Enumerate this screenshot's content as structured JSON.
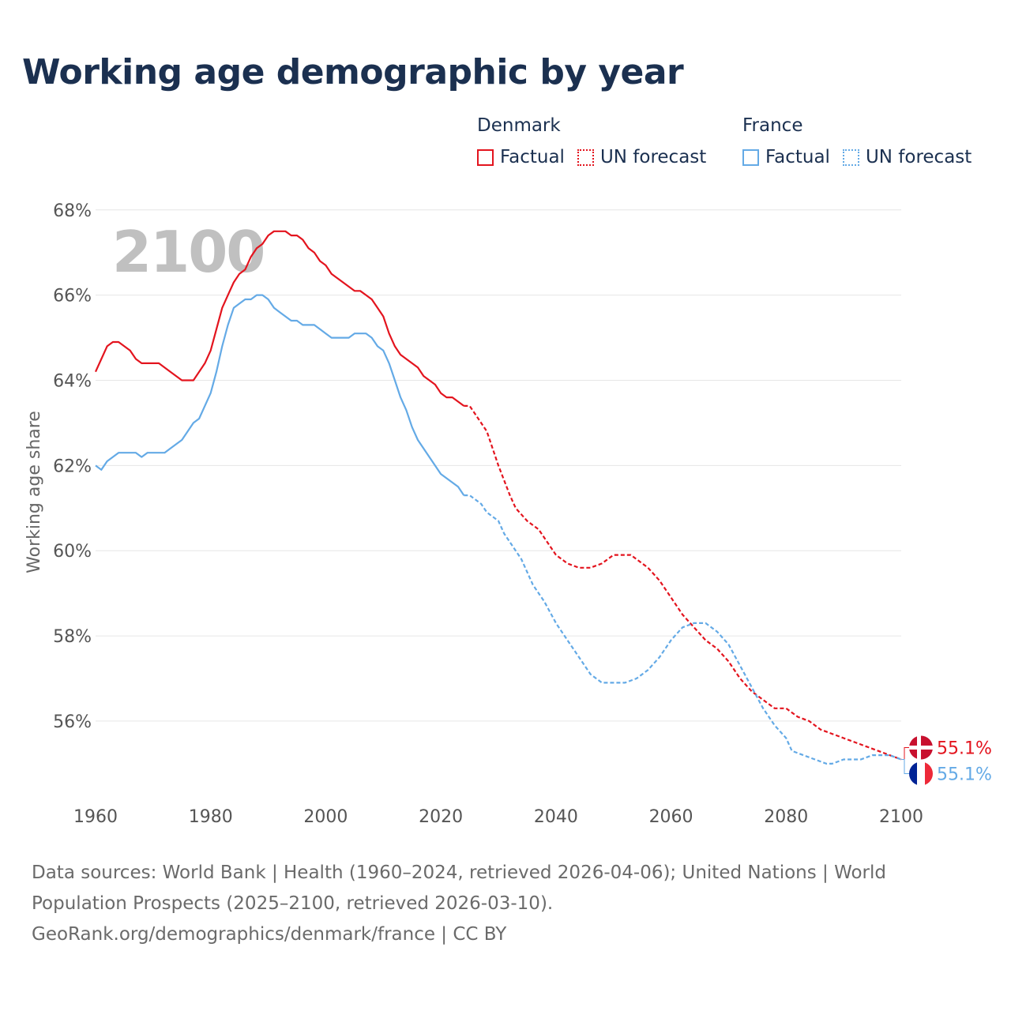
{
  "title": "Working age demographic by year",
  "legend": {
    "groups": [
      {
        "country": "Denmark",
        "color": "#e3141e",
        "items": [
          {
            "label": "Factual",
            "style": "solid"
          },
          {
            "label": "UN forecast",
            "style": "dotted"
          }
        ]
      },
      {
        "country": "France",
        "color": "#64aae6",
        "items": [
          {
            "label": "Factual",
            "style": "solid"
          },
          {
            "label": "UN forecast",
            "style": "dotted"
          }
        ]
      }
    ]
  },
  "year_label": "2100",
  "end_labels": {
    "denmark": "55.1%",
    "france": "55.1%"
  },
  "flags": {
    "denmark": "denmark-flag-icon",
    "france": "france-flag-icon"
  },
  "chart_data": {
    "type": "line",
    "title": "Working age demographic by year",
    "xlabel": "",
    "ylabel": "Working age share",
    "xlim": [
      1960,
      2100
    ],
    "ylim": [
      54.2,
      68.2
    ],
    "x_ticks": [
      1960,
      1980,
      2000,
      2020,
      2040,
      2060,
      2080,
      2100
    ],
    "x_tick_labels": [
      "1960",
      "1980",
      "2000",
      "2020",
      "2040",
      "2060",
      "2080",
      "2100"
    ],
    "y_ticks": [
      56,
      58,
      60,
      62,
      64,
      66,
      68
    ],
    "y_tick_labels": [
      "56%",
      "58%",
      "60%",
      "62%",
      "64%",
      "66%",
      "68%"
    ],
    "grid": true,
    "forecast_start": 2024,
    "series": [
      {
        "name": "Denmark",
        "color": "#e3141e",
        "points": [
          [
            1960,
            64.2
          ],
          [
            1962,
            64.8
          ],
          [
            1963,
            64.9
          ],
          [
            1964,
            64.9
          ],
          [
            1966,
            64.7
          ],
          [
            1967,
            64.5
          ],
          [
            1968,
            64.4
          ],
          [
            1971,
            64.4
          ],
          [
            1973,
            64.2
          ],
          [
            1975,
            64.0
          ],
          [
            1977,
            64.0
          ],
          [
            1979,
            64.4
          ],
          [
            1980,
            64.7
          ],
          [
            1981,
            65.2
          ],
          [
            1982,
            65.7
          ],
          [
            1983,
            66.0
          ],
          [
            1984,
            66.3
          ],
          [
            1985,
            66.5
          ],
          [
            1986,
            66.6
          ],
          [
            1987,
            66.9
          ],
          [
            1988,
            67.1
          ],
          [
            1989,
            67.2
          ],
          [
            1990,
            67.4
          ],
          [
            1991,
            67.5
          ],
          [
            1993,
            67.5
          ],
          [
            1994,
            67.4
          ],
          [
            1995,
            67.4
          ],
          [
            1996,
            67.3
          ],
          [
            1997,
            67.1
          ],
          [
            1998,
            67.0
          ],
          [
            1999,
            66.8
          ],
          [
            2000,
            66.7
          ],
          [
            2001,
            66.5
          ],
          [
            2002,
            66.4
          ],
          [
            2003,
            66.3
          ],
          [
            2004,
            66.2
          ],
          [
            2005,
            66.1
          ],
          [
            2006,
            66.1
          ],
          [
            2007,
            66.0
          ],
          [
            2008,
            65.9
          ],
          [
            2009,
            65.7
          ],
          [
            2010,
            65.5
          ],
          [
            2011,
            65.1
          ],
          [
            2012,
            64.8
          ],
          [
            2013,
            64.6
          ],
          [
            2014,
            64.5
          ],
          [
            2015,
            64.4
          ],
          [
            2016,
            64.3
          ],
          [
            2017,
            64.1
          ],
          [
            2018,
            64.0
          ],
          [
            2019,
            63.9
          ],
          [
            2020,
            63.7
          ],
          [
            2021,
            63.6
          ],
          [
            2022,
            63.6
          ],
          [
            2023,
            63.5
          ],
          [
            2024,
            63.4
          ],
          [
            2025,
            63.4
          ],
          [
            2026,
            63.2
          ],
          [
            2028,
            62.8
          ],
          [
            2030,
            62.0
          ],
          [
            2032,
            61.3
          ],
          [
            2033,
            61.0
          ],
          [
            2035,
            60.7
          ],
          [
            2037,
            60.5
          ],
          [
            2039,
            60.1
          ],
          [
            2040,
            59.9
          ],
          [
            2042,
            59.7
          ],
          [
            2044,
            59.6
          ],
          [
            2046,
            59.6
          ],
          [
            2048,
            59.7
          ],
          [
            2050,
            59.9
          ],
          [
            2053,
            59.9
          ],
          [
            2056,
            59.6
          ],
          [
            2058,
            59.3
          ],
          [
            2060,
            58.9
          ],
          [
            2062,
            58.5
          ],
          [
            2064,
            58.2
          ],
          [
            2066,
            57.9
          ],
          [
            2068,
            57.7
          ],
          [
            2070,
            57.4
          ],
          [
            2072,
            57.0
          ],
          [
            2074,
            56.7
          ],
          [
            2076,
            56.5
          ],
          [
            2078,
            56.3
          ],
          [
            2080,
            56.3
          ],
          [
            2082,
            56.1
          ],
          [
            2084,
            56.0
          ],
          [
            2086,
            55.8
          ],
          [
            2088,
            55.7
          ],
          [
            2090,
            55.6
          ],
          [
            2092,
            55.5
          ],
          [
            2094,
            55.4
          ],
          [
            2096,
            55.3
          ],
          [
            2098,
            55.2
          ],
          [
            2100,
            55.1
          ]
        ]
      },
      {
        "name": "France",
        "color": "#64aae6",
        "points": [
          [
            1960,
            62.0
          ],
          [
            1961,
            61.9
          ],
          [
            1962,
            62.1
          ],
          [
            1964,
            62.3
          ],
          [
            1967,
            62.3
          ],
          [
            1968,
            62.2
          ],
          [
            1969,
            62.3
          ],
          [
            1972,
            62.3
          ],
          [
            1973,
            62.4
          ],
          [
            1975,
            62.6
          ],
          [
            1977,
            63.0
          ],
          [
            1978,
            63.1
          ],
          [
            1980,
            63.7
          ],
          [
            1981,
            64.2
          ],
          [
            1982,
            64.8
          ],
          [
            1983,
            65.3
          ],
          [
            1984,
            65.7
          ],
          [
            1985,
            65.8
          ],
          [
            1986,
            65.9
          ],
          [
            1987,
            65.9
          ],
          [
            1988,
            66.0
          ],
          [
            1989,
            66.0
          ],
          [
            1990,
            65.9
          ],
          [
            1991,
            65.7
          ],
          [
            1992,
            65.6
          ],
          [
            1993,
            65.5
          ],
          [
            1994,
            65.4
          ],
          [
            1995,
            65.4
          ],
          [
            1996,
            65.3
          ],
          [
            1998,
            65.3
          ],
          [
            1999,
            65.2
          ],
          [
            2000,
            65.1
          ],
          [
            2001,
            65.0
          ],
          [
            2004,
            65.0
          ],
          [
            2005,
            65.1
          ],
          [
            2007,
            65.1
          ],
          [
            2008,
            65.0
          ],
          [
            2009,
            64.8
          ],
          [
            2010,
            64.7
          ],
          [
            2011,
            64.4
          ],
          [
            2012,
            64.0
          ],
          [
            2013,
            63.6
          ],
          [
            2014,
            63.3
          ],
          [
            2015,
            62.9
          ],
          [
            2016,
            62.6
          ],
          [
            2018,
            62.2
          ],
          [
            2020,
            61.8
          ],
          [
            2022,
            61.6
          ],
          [
            2023,
            61.5
          ],
          [
            2024,
            61.3
          ],
          [
            2025,
            61.3
          ],
          [
            2027,
            61.1
          ],
          [
            2028,
            60.9
          ],
          [
            2030,
            60.7
          ],
          [
            2031,
            60.4
          ],
          [
            2032,
            60.2
          ],
          [
            2034,
            59.8
          ],
          [
            2036,
            59.2
          ],
          [
            2038,
            58.8
          ],
          [
            2040,
            58.3
          ],
          [
            2042,
            57.9
          ],
          [
            2044,
            57.5
          ],
          [
            2046,
            57.1
          ],
          [
            2048,
            56.9
          ],
          [
            2050,
            56.9
          ],
          [
            2052,
            56.9
          ],
          [
            2054,
            57.0
          ],
          [
            2056,
            57.2
          ],
          [
            2058,
            57.5
          ],
          [
            2060,
            57.9
          ],
          [
            2062,
            58.2
          ],
          [
            2064,
            58.3
          ],
          [
            2066,
            58.3
          ],
          [
            2068,
            58.1
          ],
          [
            2070,
            57.8
          ],
          [
            2072,
            57.3
          ],
          [
            2074,
            56.8
          ],
          [
            2076,
            56.3
          ],
          [
            2078,
            55.9
          ],
          [
            2080,
            55.6
          ],
          [
            2081,
            55.3
          ],
          [
            2083,
            55.2
          ],
          [
            2085,
            55.1
          ],
          [
            2087,
            55.0
          ],
          [
            2088,
            55.0
          ],
          [
            2090,
            55.1
          ],
          [
            2092,
            55.1
          ],
          [
            2093,
            55.1
          ],
          [
            2095,
            55.2
          ],
          [
            2098,
            55.2
          ],
          [
            2100,
            55.1
          ]
        ]
      }
    ]
  },
  "footer": {
    "line1": "Data sources: World Bank | Health (1960–2024, retrieved 2026-04-06); United Nations | World",
    "line2": "Population Prospects (2025–2100, retrieved 2026-03-10).",
    "line3": "GeoRank.org/demographics/denmark/france | CC BY"
  }
}
